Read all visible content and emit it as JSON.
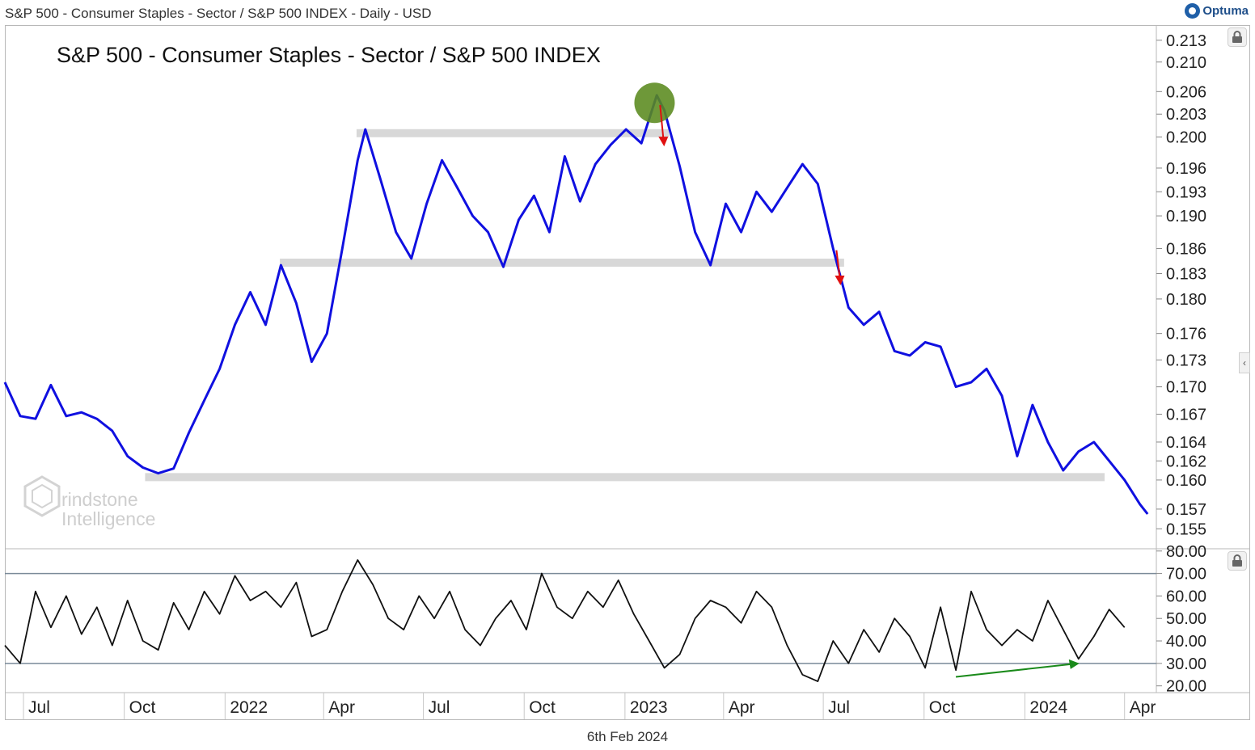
{
  "header": {
    "title": "S&P 500 - Consumer Staples - Sector / S&P 500 INDEX - Daily - USD",
    "brand": "Optuma"
  },
  "footer": {
    "date": "6th Feb 2024"
  },
  "watermark": {
    "line1": "rindstone",
    "line2": "Intelligence"
  },
  "colors": {
    "price_line": "#1010e0",
    "rsi_line": "#111111",
    "band": "#d8d8d8",
    "highlight": "#5a8a1e",
    "down_arrow": "#e01010",
    "up_arrow": "#1a8a1a"
  },
  "icons": {
    "lock": "lock-icon",
    "collapse": "chevron-left-icon",
    "brand": "optuma-logo-icon"
  },
  "chart_data": [
    {
      "type": "line",
      "title": "S&P 500 - Consumer Staples - Sector / S&P 500 INDEX",
      "y_scale": "log",
      "ylim": [
        0.153,
        0.215
      ],
      "y_ticks": [
        "0.213",
        "0.210",
        "0.206",
        "0.203",
        "0.200",
        "0.196",
        "0.193",
        "0.190",
        "0.186",
        "0.183",
        "0.180",
        "0.176",
        "0.173",
        "0.170",
        "0.167",
        "0.164",
        "0.162",
        "0.160",
        "0.157",
        "0.155"
      ],
      "x_ticks": [
        "Jul",
        "Oct",
        "2022",
        "Apr",
        "Jul",
        "Oct",
        "2023",
        "Apr",
        "Jul",
        "Oct",
        "2024",
        "Apr"
      ],
      "xlim": [
        "2021-06-14",
        "2024-04-30"
      ],
      "series": [
        {
          "points": [
            [
              "2021-06-14",
              0.1705
            ],
            [
              "2021-06-28",
              0.1668
            ],
            [
              "2021-07-12",
              0.1665
            ],
            [
              "2021-07-26",
              0.1702
            ],
            [
              "2021-08-09",
              0.1668
            ],
            [
              "2021-08-23",
              0.1672
            ],
            [
              "2021-09-06",
              0.1665
            ],
            [
              "2021-09-20",
              0.1652
            ],
            [
              "2021-10-04",
              0.1625
            ],
            [
              "2021-10-18",
              0.1613
            ],
            [
              "2021-11-01",
              0.1607
            ],
            [
              "2021-11-15",
              0.1612
            ],
            [
              "2021-11-29",
              0.165
            ],
            [
              "2021-12-13",
              0.1685
            ],
            [
              "2021-12-27",
              0.172
            ],
            [
              "2022-01-10",
              0.177
            ],
            [
              "2022-01-24",
              0.1808
            ],
            [
              "2022-02-07",
              0.177
            ],
            [
              "2022-02-21",
              0.184
            ],
            [
              "2022-03-07",
              0.1795
            ],
            [
              "2022-03-21",
              0.1728
            ],
            [
              "2022-04-04",
              0.176
            ],
            [
              "2022-04-18",
              0.186
            ],
            [
              "2022-05-02",
              0.197
            ],
            [
              "2022-05-09",
              0.201
            ],
            [
              "2022-05-23",
              0.1945
            ],
            [
              "2022-06-06",
              0.188
            ],
            [
              "2022-06-20",
              0.1848
            ],
            [
              "2022-07-04",
              0.1915
            ],
            [
              "2022-07-18",
              0.197
            ],
            [
              "2022-08-01",
              0.1935
            ],
            [
              "2022-08-15",
              0.19
            ],
            [
              "2022-08-29",
              0.188
            ],
            [
              "2022-09-12",
              0.1838
            ],
            [
              "2022-09-26",
              0.1895
            ],
            [
              "2022-10-10",
              0.1925
            ],
            [
              "2022-10-24",
              0.188
            ],
            [
              "2022-11-07",
              0.1975
            ],
            [
              "2022-11-21",
              0.1918
            ],
            [
              "2022-12-05",
              0.1965
            ],
            [
              "2022-12-19",
              0.199
            ],
            [
              "2023-01-02",
              0.201
            ],
            [
              "2023-01-16",
              0.1992
            ],
            [
              "2023-01-30",
              0.2055
            ],
            [
              "2023-02-06",
              0.2035
            ],
            [
              "2023-02-20",
              0.1962
            ],
            [
              "2023-03-06",
              0.188
            ],
            [
              "2023-03-20",
              0.184
            ],
            [
              "2023-04-03",
              0.1915
            ],
            [
              "2023-04-17",
              0.188
            ],
            [
              "2023-05-01",
              0.193
            ],
            [
              "2023-05-15",
              0.1905
            ],
            [
              "2023-05-29",
              0.1935
            ],
            [
              "2023-06-12",
              0.1965
            ],
            [
              "2023-06-26",
              0.194
            ],
            [
              "2023-07-10",
              0.186
            ],
            [
              "2023-07-24",
              0.179
            ],
            [
              "2023-08-07",
              0.177
            ],
            [
              "2023-08-21",
              0.1785
            ],
            [
              "2023-09-04",
              0.174
            ],
            [
              "2023-09-18",
              0.1735
            ],
            [
              "2023-10-02",
              0.175
            ],
            [
              "2023-10-16",
              0.1745
            ],
            [
              "2023-10-30",
              0.17
            ],
            [
              "2023-11-13",
              0.1705
            ],
            [
              "2023-11-27",
              0.172
            ],
            [
              "2023-12-11",
              0.169
            ],
            [
              "2023-12-25",
              0.1625
            ],
            [
              "2024-01-08",
              0.168
            ],
            [
              "2024-01-22",
              0.164
            ],
            [
              "2024-02-05",
              0.161
            ],
            [
              "2024-02-19",
              0.163
            ],
            [
              "2024-03-04",
              0.164
            ],
            [
              "2024-03-18",
              0.162
            ],
            [
              "2024-04-01",
              0.16
            ],
            [
              "2024-04-15",
              0.1575
            ],
            [
              "2024-04-22",
              0.1565
            ]
          ]
        }
      ],
      "bands": [
        {
          "x": [
            "2021-10-20",
            "2024-04-30"
          ],
          "y": 0.1603
        },
        {
          "x": [
            "2022-02-20",
            "2023-07-20"
          ],
          "y": 0.1843
        },
        {
          "x": [
            "2022-05-01",
            "2023-02-10"
          ],
          "y": 0.2005
        }
      ],
      "annotations": [
        {
          "type": "circle",
          "x": "2023-01-28",
          "y": 0.2045
        },
        {
          "type": "arrow",
          "direction": "down",
          "x": "2023-02-05",
          "y": [
            0.2042,
            0.199
          ]
        },
        {
          "type": "arrow",
          "direction": "down",
          "x": "2023-07-16",
          "y": [
            0.1858,
            0.1818
          ]
        }
      ]
    },
    {
      "type": "line",
      "ylim": [
        17,
        81
      ],
      "y_ticks": [
        "80.00",
        "70.00",
        "60.00",
        "50.00",
        "40.00",
        "30.00",
        "20.00"
      ],
      "reference_lines": [
        70,
        30
      ],
      "series": [
        {
          "points": [
            [
              "2021-06-14",
              38
            ],
            [
              "2021-06-28",
              30
            ],
            [
              "2021-07-12",
              62
            ],
            [
              "2021-07-26",
              46
            ],
            [
              "2021-08-09",
              60
            ],
            [
              "2021-08-23",
              43
            ],
            [
              "2021-09-06",
              55
            ],
            [
              "2021-09-20",
              38
            ],
            [
              "2021-10-04",
              58
            ],
            [
              "2021-10-18",
              40
            ],
            [
              "2021-11-01",
              36
            ],
            [
              "2021-11-15",
              57
            ],
            [
              "2021-11-29",
              45
            ],
            [
              "2021-12-13",
              62
            ],
            [
              "2021-12-27",
              52
            ],
            [
              "2022-01-10",
              69
            ],
            [
              "2022-01-24",
              58
            ],
            [
              "2022-02-07",
              62
            ],
            [
              "2022-02-21",
              55
            ],
            [
              "2022-03-07",
              66
            ],
            [
              "2022-03-21",
              42
            ],
            [
              "2022-04-04",
              45
            ],
            [
              "2022-04-18",
              62
            ],
            [
              "2022-05-02",
              76
            ],
            [
              "2022-05-16",
              65
            ],
            [
              "2022-05-30",
              50
            ],
            [
              "2022-06-13",
              45
            ],
            [
              "2022-06-27",
              60
            ],
            [
              "2022-07-11",
              50
            ],
            [
              "2022-07-25",
              62
            ],
            [
              "2022-08-08",
              45
            ],
            [
              "2022-08-22",
              38
            ],
            [
              "2022-09-05",
              50
            ],
            [
              "2022-09-19",
              58
            ],
            [
              "2022-10-03",
              45
            ],
            [
              "2022-10-17",
              70
            ],
            [
              "2022-10-31",
              55
            ],
            [
              "2022-11-14",
              50
            ],
            [
              "2022-11-28",
              62
            ],
            [
              "2022-12-12",
              55
            ],
            [
              "2022-12-26",
              67
            ],
            [
              "2023-01-09",
              52
            ],
            [
              "2023-01-23",
              40
            ],
            [
              "2023-02-06",
              28
            ],
            [
              "2023-02-20",
              34
            ],
            [
              "2023-03-06",
              50
            ],
            [
              "2023-03-20",
              58
            ],
            [
              "2023-04-03",
              55
            ],
            [
              "2023-04-17",
              48
            ],
            [
              "2023-05-01",
              62
            ],
            [
              "2023-05-15",
              55
            ],
            [
              "2023-05-29",
              38
            ],
            [
              "2023-06-12",
              25
            ],
            [
              "2023-06-26",
              22
            ],
            [
              "2023-07-10",
              40
            ],
            [
              "2023-07-24",
              30
            ],
            [
              "2023-08-07",
              45
            ],
            [
              "2023-08-21",
              35
            ],
            [
              "2023-09-04",
              50
            ],
            [
              "2023-09-18",
              42
            ],
            [
              "2023-10-02",
              28
            ],
            [
              "2023-10-16",
              55
            ],
            [
              "2023-10-30",
              27
            ],
            [
              "2023-11-13",
              62
            ],
            [
              "2023-11-27",
              45
            ],
            [
              "2023-12-11",
              38
            ],
            [
              "2023-12-25",
              45
            ],
            [
              "2024-01-08",
              40
            ],
            [
              "2024-01-22",
              58
            ],
            [
              "2024-02-05",
              45
            ],
            [
              "2024-02-19",
              32
            ],
            [
              "2024-03-04",
              42
            ],
            [
              "2024-03-18",
              54
            ],
            [
              "2024-04-01",
              46
            ]
          ]
        }
      ],
      "annotations": [
        {
          "type": "arrow",
          "direction": "up",
          "from": [
            "2023-10-30",
            24
          ],
          "to": [
            "2024-02-19",
            30
          ]
        }
      ]
    }
  ]
}
